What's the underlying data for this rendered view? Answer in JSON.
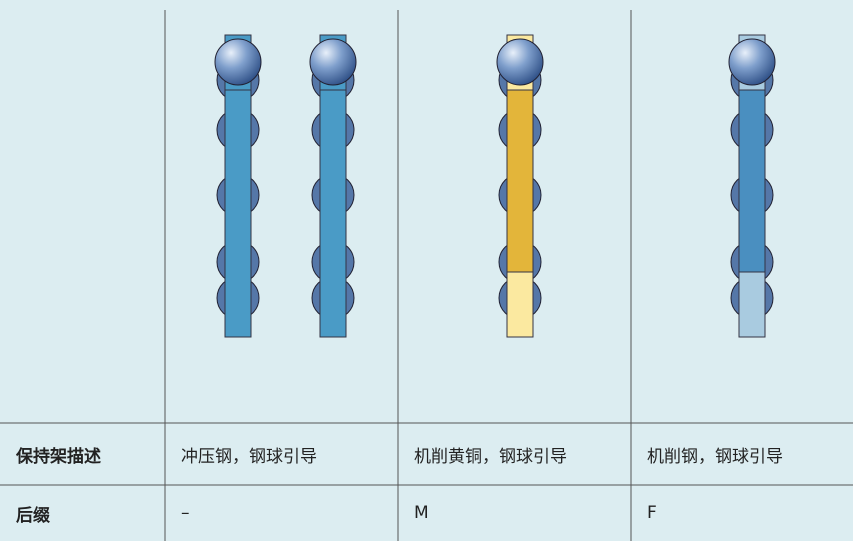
{
  "table": {
    "rows": [
      [
        "保持架描述",
        "冲压钢，钢球引导",
        "机削黄铜，钢球引导",
        "机削钢，钢球引导"
      ],
      [
        "后缀",
        "–",
        "M",
        "F"
      ]
    ]
  }
}
